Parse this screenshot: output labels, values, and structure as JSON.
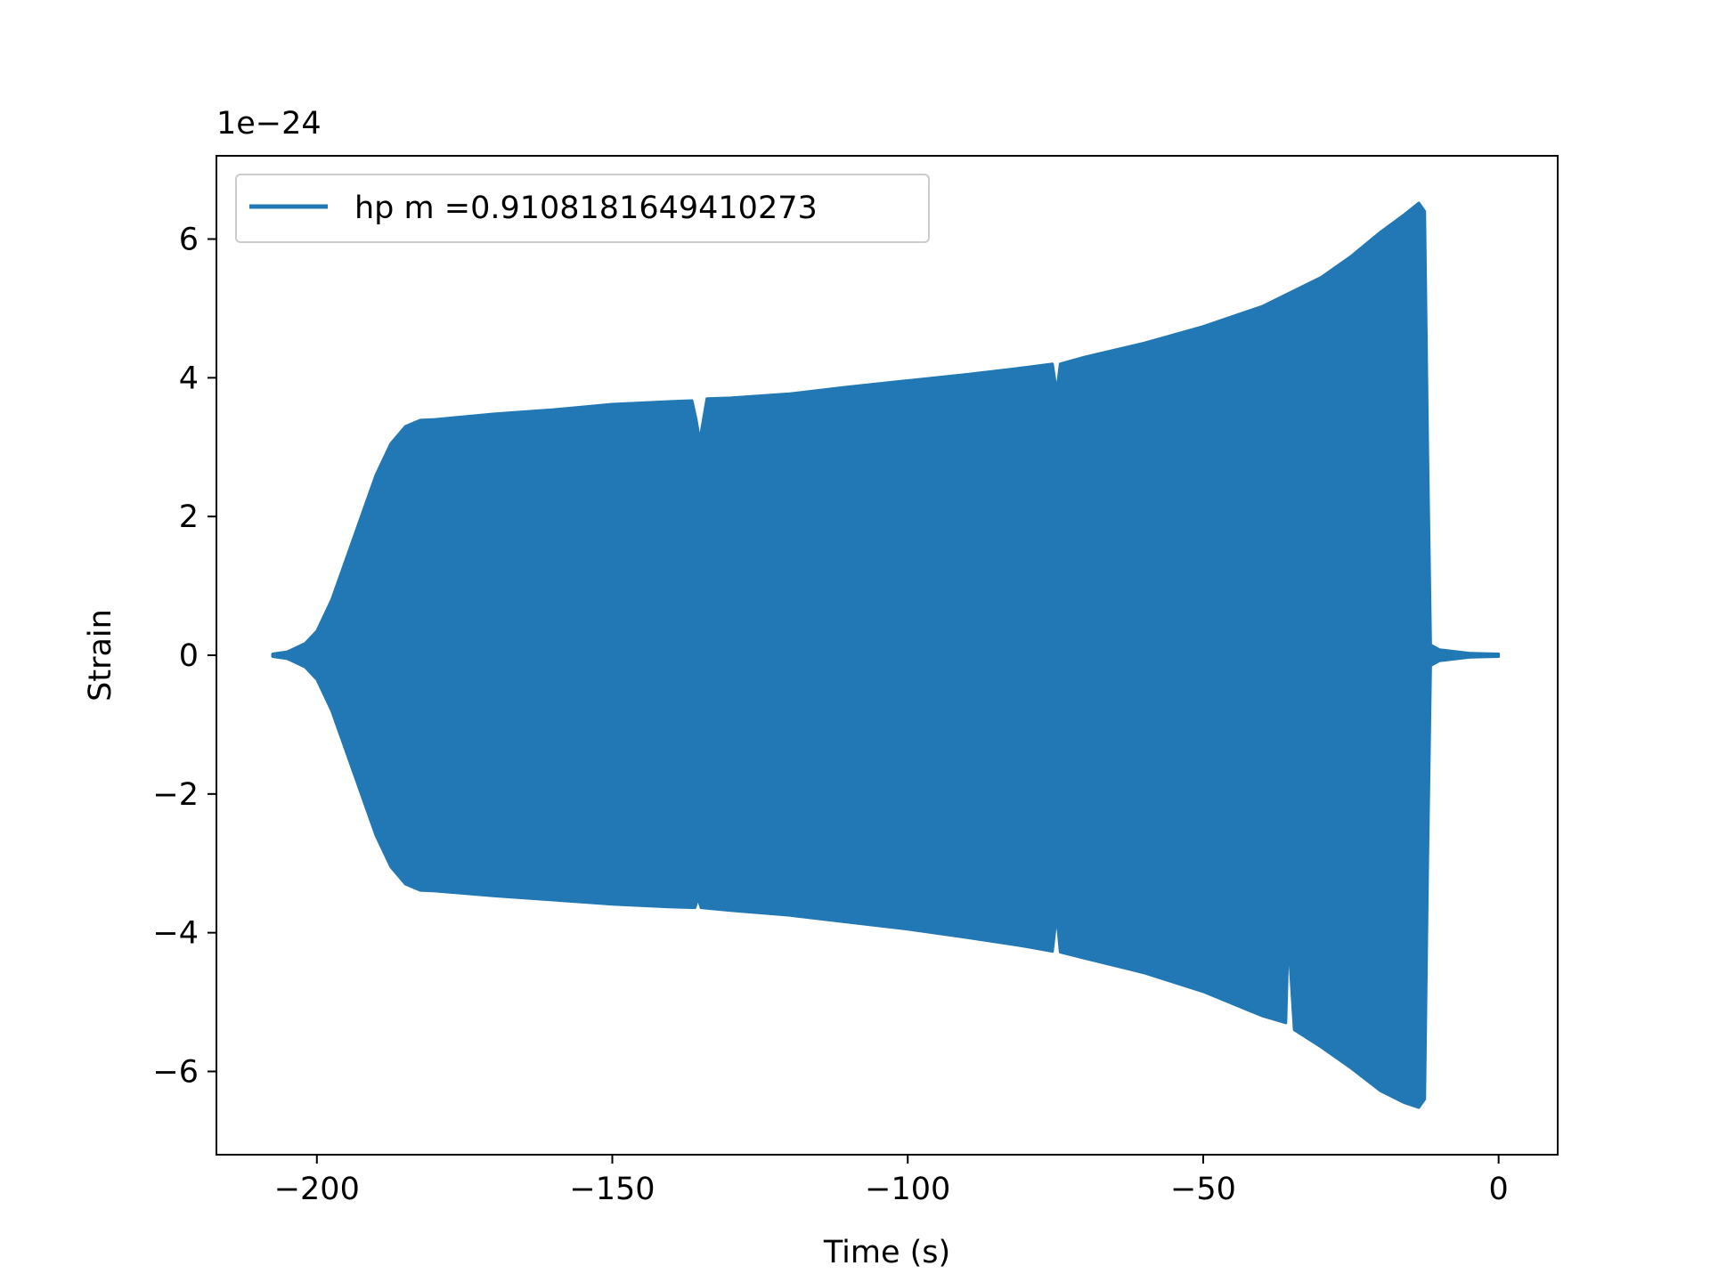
{
  "chart_data": {
    "type": "area",
    "xlabel": "Time (s)",
    "ylabel": "Strain",
    "y_offset_label": "1e−24",
    "xlim": [
      -217,
      10
    ],
    "ylim": [
      -7.2,
      7.2
    ],
    "x_ticks": [
      -200,
      -150,
      -100,
      -50,
      0
    ],
    "x_tick_labels": [
      "−200",
      "−150",
      "−100",
      "−50",
      "0"
    ],
    "y_ticks": [
      -6,
      -4,
      -2,
      0,
      2,
      4,
      6
    ],
    "y_tick_labels": [
      "−6",
      "−4",
      "−2",
      "0",
      "2",
      "4",
      "6"
    ],
    "grid": false,
    "legend_position": "top-left",
    "color": "#2178b4",
    "series": [
      {
        "name": "hp m =0.9108181649410273",
        "upper": [
          [
            -207.5,
            0.02
          ],
          [
            -205.0,
            0.05
          ],
          [
            -202.0,
            0.17
          ],
          [
            -200.0,
            0.35
          ],
          [
            -197.5,
            0.8
          ],
          [
            -195.0,
            1.4
          ],
          [
            -192.5,
            2.0
          ],
          [
            -190.0,
            2.6
          ],
          [
            -187.5,
            3.05
          ],
          [
            -185.0,
            3.3
          ],
          [
            -182.5,
            3.39
          ],
          [
            -180.0,
            3.4
          ],
          [
            -170.0,
            3.48
          ],
          [
            -160.0,
            3.54
          ],
          [
            -150.0,
            3.62
          ],
          [
            -140.0,
            3.66
          ],
          [
            -136.5,
            3.67
          ],
          [
            -135.8,
            3.4
          ],
          [
            -135.2,
            3.1
          ],
          [
            -134.6,
            3.4
          ],
          [
            -134.0,
            3.7
          ],
          [
            -130.0,
            3.71
          ],
          [
            -120.0,
            3.77
          ],
          [
            -110.0,
            3.87
          ],
          [
            -100.0,
            3.96
          ],
          [
            -90.0,
            4.05
          ],
          [
            -80.0,
            4.15
          ],
          [
            -75.5,
            4.2
          ],
          [
            -74.8,
            3.8
          ],
          [
            -74.2,
            4.2
          ],
          [
            -70.0,
            4.3
          ],
          [
            -60.0,
            4.5
          ],
          [
            -50.0,
            4.74
          ],
          [
            -40.0,
            5.03
          ],
          [
            -30.0,
            5.45
          ],
          [
            -25.0,
            5.75
          ],
          [
            -20.0,
            6.1
          ],
          [
            -16.0,
            6.35
          ],
          [
            -13.5,
            6.52
          ],
          [
            -12.5,
            6.4
          ],
          [
            -12.0,
            3.0
          ],
          [
            -11.5,
            0.15
          ],
          [
            -10.0,
            0.08
          ],
          [
            -5.0,
            0.03
          ],
          [
            0.0,
            0.02
          ]
        ],
        "lower": [
          [
            -207.5,
            -0.02
          ],
          [
            -205.0,
            -0.05
          ],
          [
            -202.0,
            -0.17
          ],
          [
            -200.0,
            -0.35
          ],
          [
            -197.5,
            -0.8
          ],
          [
            -195.0,
            -1.4
          ],
          [
            -192.5,
            -2.0
          ],
          [
            -190.0,
            -2.6
          ],
          [
            -187.5,
            -3.05
          ],
          [
            -185.0,
            -3.3
          ],
          [
            -182.5,
            -3.39
          ],
          [
            -180.0,
            -3.4
          ],
          [
            -170.0,
            -3.47
          ],
          [
            -160.0,
            -3.53
          ],
          [
            -150.0,
            -3.59
          ],
          [
            -140.0,
            -3.63
          ],
          [
            -136.0,
            -3.64
          ],
          [
            -135.5,
            -3.5
          ],
          [
            -135.0,
            -3.64
          ],
          [
            -130.0,
            -3.68
          ],
          [
            -120.0,
            -3.75
          ],
          [
            -110.0,
            -3.85
          ],
          [
            -100.0,
            -3.95
          ],
          [
            -90.0,
            -4.07
          ],
          [
            -80.0,
            -4.2
          ],
          [
            -75.5,
            -4.27
          ],
          [
            -74.8,
            -3.75
          ],
          [
            -74.2,
            -4.28
          ],
          [
            -70.0,
            -4.37
          ],
          [
            -60.0,
            -4.58
          ],
          [
            -50.0,
            -4.85
          ],
          [
            -40.0,
            -5.2
          ],
          [
            -36.0,
            -5.3
          ],
          [
            -35.6,
            -4.05
          ],
          [
            -34.6,
            -5.4
          ],
          [
            -30.0,
            -5.65
          ],
          [
            -25.0,
            -5.95
          ],
          [
            -20.0,
            -6.28
          ],
          [
            -16.0,
            -6.45
          ],
          [
            -13.5,
            -6.52
          ],
          [
            -12.5,
            -6.4
          ],
          [
            -12.0,
            -3.0
          ],
          [
            -11.5,
            -0.15
          ],
          [
            -10.0,
            -0.08
          ],
          [
            -5.0,
            -0.03
          ],
          [
            0.0,
            -0.02
          ]
        ]
      }
    ]
  }
}
